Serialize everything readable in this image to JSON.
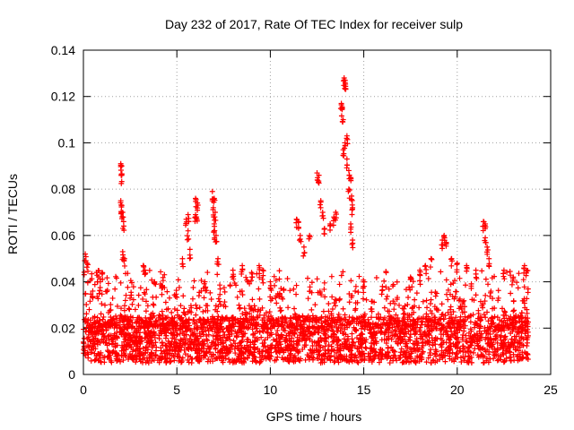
{
  "chart_data": {
    "type": "scatter",
    "title": "Day 232 of 2017, Rate Of TEC Index for receiver sulp",
    "xlabel": "GPS time / hours",
    "ylabel": "ROTI / TECUs",
    "xlim": [
      0,
      25
    ],
    "ylim": [
      0,
      0.14
    ],
    "xticks": [
      0,
      5,
      10,
      15,
      20,
      25
    ],
    "xtick_labels": [
      "0",
      "5",
      "10",
      "15",
      "20",
      "25"
    ],
    "yticks": [
      0,
      0.02,
      0.04,
      0.06,
      0.08,
      0.1,
      0.12,
      0.14
    ],
    "ytick_labels": [
      "0",
      "0.02",
      "0.04",
      "0.06",
      "0.08",
      "0.1",
      "0.12",
      "0.14"
    ],
    "grid": true,
    "marker": "+",
    "marker_color": "#ff0000",
    "x_data_range": [
      0,
      23.8
    ],
    "baseline_band": [
      0.005,
      0.025
    ],
    "series": [
      {
        "name": "ROTI",
        "points": [
          [
            0.1,
            0.052
          ],
          [
            0.2,
            0.048
          ],
          [
            0.5,
            0.036
          ],
          [
            0.9,
            0.04
          ],
          [
            1.0,
            0.044
          ],
          [
            2.0,
            0.091
          ],
          [
            2.05,
            0.09
          ],
          [
            2.05,
            0.086
          ],
          [
            2.0,
            0.075
          ],
          [
            2.05,
            0.073
          ],
          [
            2.1,
            0.07
          ],
          [
            2.15,
            0.066
          ],
          [
            2.1,
            0.053
          ],
          [
            2.2,
            0.05
          ],
          [
            3.2,
            0.047
          ],
          [
            3.3,
            0.045
          ],
          [
            3.8,
            0.04
          ],
          [
            4.2,
            0.038
          ],
          [
            5.3,
            0.05
          ],
          [
            5.5,
            0.067
          ],
          [
            5.6,
            0.069
          ],
          [
            5.6,
            0.062
          ],
          [
            5.7,
            0.054
          ],
          [
            6.0,
            0.076
          ],
          [
            6.1,
            0.074
          ],
          [
            6.0,
            0.069
          ],
          [
            6.05,
            0.068
          ],
          [
            6.5,
            0.04
          ],
          [
            6.9,
            0.079
          ],
          [
            7.0,
            0.076
          ],
          [
            6.95,
            0.072
          ],
          [
            7.05,
            0.07
          ],
          [
            7.0,
            0.065
          ],
          [
            7.0,
            0.062
          ],
          [
            7.1,
            0.06
          ],
          [
            7.2,
            0.05
          ],
          [
            8.0,
            0.045
          ],
          [
            8.5,
            0.047
          ],
          [
            9.0,
            0.044
          ],
          [
            9.4,
            0.047
          ],
          [
            9.6,
            0.045
          ],
          [
            10.0,
            0.04
          ],
          [
            10.5,
            0.035
          ],
          [
            11.4,
            0.067
          ],
          [
            11.5,
            0.066
          ],
          [
            11.6,
            0.06
          ],
          [
            11.8,
            0.055
          ],
          [
            12.1,
            0.06
          ],
          [
            12.5,
            0.087
          ],
          [
            12.6,
            0.086
          ],
          [
            12.7,
            0.075
          ],
          [
            12.8,
            0.07
          ],
          [
            12.9,
            0.063
          ],
          [
            13.2,
            0.065
          ],
          [
            13.4,
            0.068
          ],
          [
            13.5,
            0.07
          ],
          [
            13.8,
            0.117
          ],
          [
            13.85,
            0.115
          ],
          [
            13.9,
            0.11
          ],
          [
            13.95,
            0.128
          ],
          [
            14.0,
            0.127
          ],
          [
            14.0,
            0.126
          ],
          [
            14.1,
            0.103
          ],
          [
            14.0,
            0.1
          ],
          [
            13.9,
            0.097
          ],
          [
            14.1,
            0.093
          ],
          [
            14.2,
            0.088
          ],
          [
            14.3,
            0.085
          ],
          [
            14.2,
            0.08
          ],
          [
            14.35,
            0.077
          ],
          [
            14.4,
            0.072
          ],
          [
            14.3,
            0.065
          ],
          [
            14.4,
            0.058
          ],
          [
            15.0,
            0.04
          ],
          [
            16.0,
            0.038
          ],
          [
            17.5,
            0.042
          ],
          [
            18.0,
            0.045
          ],
          [
            18.3,
            0.047
          ],
          [
            18.6,
            0.05
          ],
          [
            19.2,
            0.058
          ],
          [
            19.3,
            0.06
          ],
          [
            19.4,
            0.057
          ],
          [
            19.7,
            0.05
          ],
          [
            20.0,
            0.048
          ],
          [
            20.5,
            0.047
          ],
          [
            21.0,
            0.045
          ],
          [
            21.4,
            0.066
          ],
          [
            21.5,
            0.065
          ],
          [
            21.5,
            0.059
          ],
          [
            21.6,
            0.055
          ],
          [
            21.7,
            0.05
          ],
          [
            22.5,
            0.045
          ],
          [
            23.0,
            0.042
          ],
          [
            23.6,
            0.047
          ],
          [
            23.7,
            0.045
          ]
        ]
      }
    ]
  }
}
